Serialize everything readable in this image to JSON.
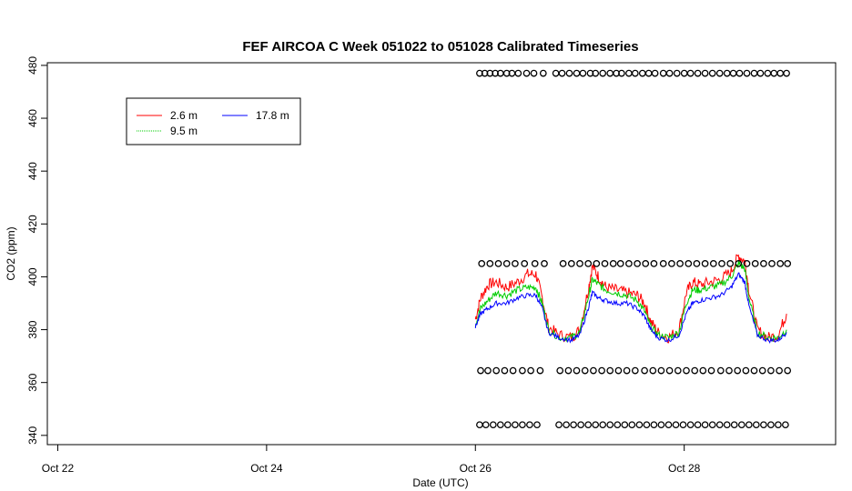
{
  "chart_data": {
    "type": "line",
    "title": "FEF AIRCOA C  Week 051022 to 051028  Calibrated Timeseries",
    "xlabel": "Date (UTC)",
    "ylabel": "CO2 (ppm)",
    "xlim": [
      -0.1,
      7.45
    ],
    "ylim": [
      336.5,
      481
    ],
    "x_ticks": [
      {
        "value": 0,
        "label": "Oct 22"
      },
      {
        "value": 2,
        "label": "Oct 24"
      },
      {
        "value": 4,
        "label": "Oct 26"
      },
      {
        "value": 6,
        "label": "Oct 28"
      }
    ],
    "y_ticks": [
      340,
      360,
      380,
      400,
      420,
      440,
      460,
      480
    ],
    "legend": {
      "placement": "top-left",
      "entries": [
        {
          "label": "2.6 m",
          "color": "#ff0000"
        },
        {
          "label": "9.5 m",
          "color": "#00cd00"
        },
        {
          "label": "17.8 m",
          "color": "#0000ff"
        }
      ]
    },
    "x_unit": "days since Oct 22 00:00 UTC",
    "series": [
      {
        "name": "2.6 m",
        "color": "#ff0000",
        "x": [
          4.0,
          4.05,
          4.12,
          4.2,
          4.3,
          4.4,
          4.5,
          4.58,
          4.64,
          4.7,
          4.8,
          4.92,
          5.0,
          5.08,
          5.12,
          5.18,
          5.25,
          5.35,
          5.45,
          5.55,
          5.62,
          5.68,
          5.75,
          5.85,
          5.95,
          6.02,
          6.08,
          6.15,
          6.25,
          6.35,
          6.45,
          6.52,
          6.58,
          6.62,
          6.7,
          6.8,
          6.9,
          6.98
        ],
        "y": [
          384,
          392,
          397,
          398,
          396,
          398,
          401,
          401,
          392,
          381,
          378,
          377,
          380,
          395,
          404,
          400,
          396,
          395,
          394,
          393,
          390,
          383,
          379,
          377,
          380,
          394,
          398,
          397,
          398,
          399,
          402,
          408,
          406,
          395,
          380,
          377,
          378,
          386
        ]
      },
      {
        "name": "9.5 m",
        "color": "#00cd00",
        "x": [
          4.0,
          4.05,
          4.12,
          4.2,
          4.3,
          4.4,
          4.5,
          4.58,
          4.64,
          4.7,
          4.8,
          4.92,
          5.0,
          5.08,
          5.12,
          5.18,
          5.25,
          5.35,
          5.45,
          5.55,
          5.62,
          5.68,
          5.75,
          5.85,
          5.95,
          6.02,
          6.08,
          6.15,
          6.25,
          6.35,
          6.45,
          6.52,
          6.58,
          6.62,
          6.7,
          6.8,
          6.9,
          6.98
        ],
        "y": [
          382,
          388,
          391,
          394,
          393,
          395,
          396,
          396,
          390,
          380,
          377,
          377,
          379,
          392,
          399,
          397,
          395,
          394,
          393,
          391,
          387,
          381,
          378,
          377,
          379,
          390,
          395,
          395,
          396,
          397,
          400,
          405,
          403,
          392,
          379,
          377,
          377,
          380
        ]
      },
      {
        "name": "17.8 m",
        "color": "#0000ff",
        "x": [
          4.0,
          4.05,
          4.12,
          4.2,
          4.3,
          4.4,
          4.5,
          4.58,
          4.64,
          4.7,
          4.8,
          4.92,
          5.0,
          5.08,
          5.12,
          5.18,
          5.25,
          5.35,
          5.45,
          5.55,
          5.62,
          5.68,
          5.75,
          5.85,
          5.95,
          6.02,
          6.08,
          6.15,
          6.25,
          6.35,
          6.45,
          6.52,
          6.58,
          6.62,
          6.7,
          6.8,
          6.9,
          6.98
        ],
        "y": [
          381,
          386,
          388,
          390,
          390,
          392,
          393,
          393,
          388,
          379,
          377,
          376,
          378,
          388,
          394,
          392,
          391,
          390,
          390,
          388,
          385,
          380,
          377,
          376,
          378,
          386,
          390,
          391,
          392,
          393,
          396,
          401,
          398,
          389,
          378,
          376,
          376,
          379
        ]
      }
    ],
    "reference_points": [
      {
        "y": 477,
        "x": [
          4.04,
          4.09,
          4.14,
          4.19,
          4.24,
          4.3,
          4.35,
          4.41,
          4.49,
          4.56,
          4.65,
          4.77,
          4.83,
          4.9,
          4.97,
          5.03,
          5.1,
          5.15,
          5.22,
          5.29,
          5.35,
          5.4,
          5.47,
          5.53,
          5.6,
          5.66,
          5.72,
          5.8,
          5.86,
          5.93,
          6.0,
          6.06,
          6.13,
          6.2,
          6.27,
          6.34,
          6.41,
          6.47,
          6.53,
          6.6,
          6.67,
          6.73,
          6.8,
          6.86,
          6.92,
          6.98
        ]
      },
      {
        "y": 405,
        "x": [
          4.06,
          4.14,
          4.22,
          4.3,
          4.38,
          4.47,
          4.57,
          4.66,
          4.84,
          4.92,
          5.0,
          5.08,
          5.16,
          5.24,
          5.32,
          5.39,
          5.47,
          5.55,
          5.63,
          5.71,
          5.8,
          5.88,
          5.96,
          6.04,
          6.12,
          6.2,
          6.28,
          6.36,
          6.44,
          6.52,
          6.6,
          6.68,
          6.76,
          6.84,
          6.92,
          6.99
        ]
      },
      {
        "y": 364.5,
        "x": [
          4.05,
          4.12,
          4.2,
          4.28,
          4.36,
          4.45,
          4.53,
          4.62,
          4.81,
          4.89,
          4.97,
          5.05,
          5.13,
          5.21,
          5.29,
          5.37,
          5.45,
          5.53,
          5.62,
          5.7,
          5.78,
          5.86,
          5.94,
          6.02,
          6.1,
          6.18,
          6.26,
          6.35,
          6.43,
          6.51,
          6.59,
          6.67,
          6.75,
          6.83,
          6.91,
          6.99
        ]
      },
      {
        "y": 344,
        "x": [
          4.04,
          4.1,
          4.17,
          4.24,
          4.31,
          4.38,
          4.45,
          4.52,
          4.59,
          4.8,
          4.87,
          4.94,
          5.01,
          5.08,
          5.15,
          5.22,
          5.29,
          5.36,
          5.43,
          5.5,
          5.57,
          5.64,
          5.71,
          5.78,
          5.85,
          5.92,
          5.99,
          6.06,
          6.13,
          6.2,
          6.27,
          6.34,
          6.41,
          6.48,
          6.55,
          6.62,
          6.69,
          6.76,
          6.83,
          6.9,
          6.97
        ]
      }
    ]
  }
}
